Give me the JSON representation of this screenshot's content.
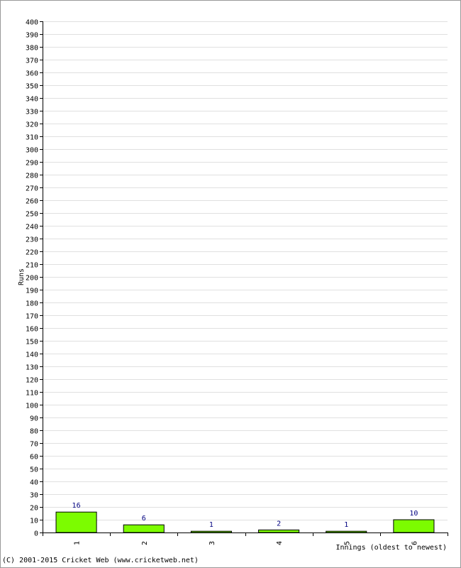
{
  "chart_data": {
    "type": "bar",
    "x_label": "Innings (oldest to newest)",
    "y_label": "Runs",
    "footer": "(C) 2001-2015 Cricket Web (www.cricketweb.net)",
    "categories": [
      "1",
      "2",
      "3",
      "4",
      "5",
      "6"
    ],
    "values": [
      16,
      6,
      1,
      2,
      1,
      10
    ],
    "color": "#7cfc00",
    "ylim": [
      0,
      400
    ],
    "yticks": [
      0,
      10,
      20,
      30,
      40,
      50,
      60,
      70,
      80,
      90,
      100,
      110,
      120,
      130,
      140,
      150,
      160,
      170,
      180,
      190,
      200,
      210,
      220,
      230,
      240,
      250,
      260,
      270,
      280,
      290,
      300,
      310,
      320,
      330,
      340,
      350,
      360,
      370,
      380,
      390,
      400
    ],
    "grid": true
  }
}
